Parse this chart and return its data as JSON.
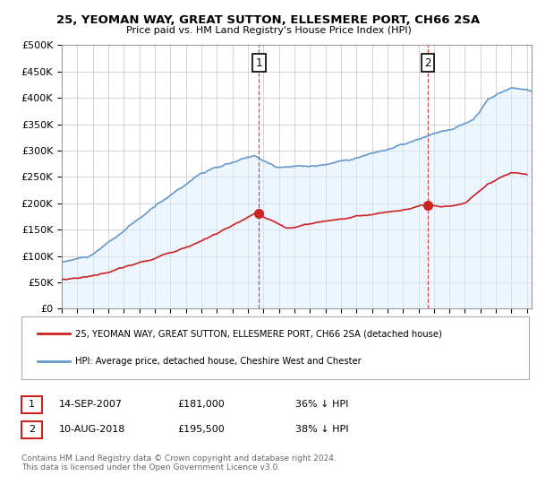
{
  "title": "25, YEOMAN WAY, GREAT SUTTON, ELLESMERE PORT, CH66 2SA",
  "subtitle": "Price paid vs. HM Land Registry's House Price Index (HPI)",
  "ylabel_ticks": [
    "£0",
    "£50K",
    "£100K",
    "£150K",
    "£200K",
    "£250K",
    "£300K",
    "£350K",
    "£400K",
    "£450K",
    "£500K"
  ],
  "ytick_values": [
    0,
    50000,
    100000,
    150000,
    200000,
    250000,
    300000,
    350000,
    400000,
    450000,
    500000
  ],
  "ylim": [
    0,
    500000
  ],
  "xlim_start": 1995.0,
  "xlim_end": 2025.3,
  "hpi_color": "#6699cc",
  "hpi_fill_color": "#ddeeff",
  "price_color": "#cc2222",
  "marker1_x": 2007.71,
  "marker1_y": 181000,
  "marker2_x": 2018.61,
  "marker2_y": 195500,
  "legend_label_price": "25, YEOMAN WAY, GREAT SUTTON, ELLESMERE PORT, CH66 2SA (detached house)",
  "legend_label_hpi": "HPI: Average price, detached house, Cheshire West and Chester",
  "note1_label": "1",
  "note1_date": "14-SEP-2007",
  "note1_price": "£181,000",
  "note1_pct": "36% ↓ HPI",
  "note2_label": "2",
  "note2_date": "10-AUG-2018",
  "note2_price": "£195,500",
  "note2_pct": "38% ↓ HPI",
  "footer": "Contains HM Land Registry data © Crown copyright and database right 2024.\nThis data is licensed under the Open Government Licence v3.0.",
  "bg_color": "#ffffff",
  "grid_color": "#cccccc"
}
